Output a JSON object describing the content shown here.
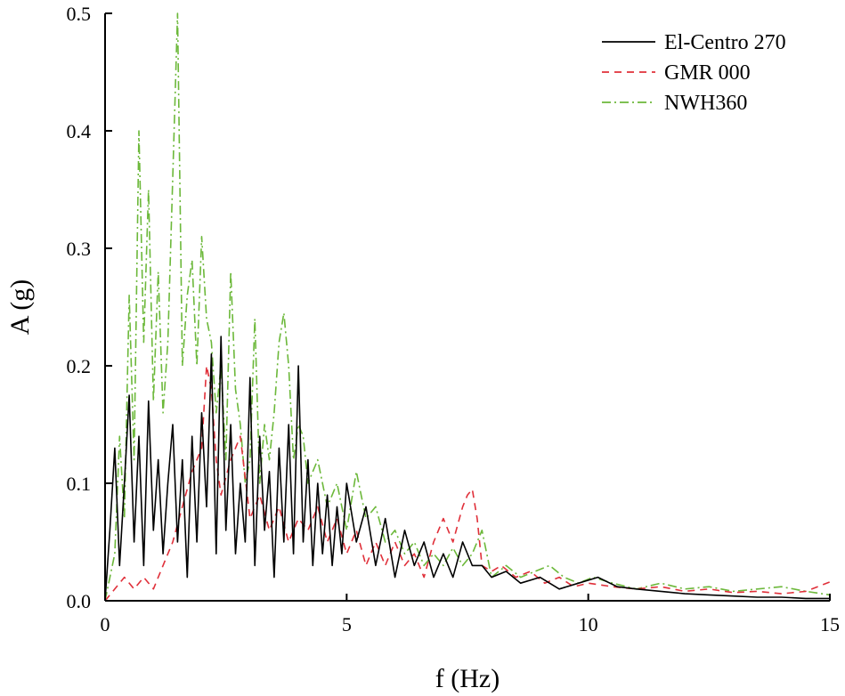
{
  "chart_data": {
    "type": "line",
    "title": "",
    "xlabel": "f (Hz)",
    "ylabel": "A (g)",
    "xlim": [
      0,
      15
    ],
    "ylim": [
      0,
      0.5
    ],
    "xticks": [
      0,
      5,
      10,
      15
    ],
    "xtick_labels": [
      "0",
      "5",
      "10",
      "15"
    ],
    "yticks": [
      0,
      0.1,
      0.2,
      0.3,
      0.4,
      0.5
    ],
    "ytick_labels": [
      "0.0",
      "0.1",
      "0.2",
      "0.3",
      "0.4",
      "0.5"
    ],
    "grid": false,
    "legend_position": "top-right",
    "series": [
      {
        "name": "El-Centro 270",
        "color": "#000000",
        "dash": "solid",
        "x": [
          0,
          0.1,
          0.2,
          0.3,
          0.4,
          0.5,
          0.6,
          0.7,
          0.8,
          0.9,
          1.0,
          1.1,
          1.2,
          1.3,
          1.4,
          1.5,
          1.6,
          1.7,
          1.8,
          1.9,
          2.0,
          2.1,
          2.2,
          2.3,
          2.4,
          2.5,
          2.6,
          2.7,
          2.8,
          2.9,
          3.0,
          3.1,
          3.2,
          3.3,
          3.4,
          3.5,
          3.6,
          3.7,
          3.8,
          3.9,
          4.0,
          4.1,
          4.2,
          4.3,
          4.4,
          4.5,
          4.6,
          4.7,
          4.8,
          4.9,
          5.0,
          5.2,
          5.4,
          5.6,
          5.8,
          6.0,
          6.2,
          6.4,
          6.6,
          6.8,
          7.0,
          7.2,
          7.4,
          7.6,
          7.8,
          8.0,
          8.3,
          8.6,
          9.0,
          9.4,
          9.8,
          10.2,
          10.6,
          11.0,
          11.5,
          12.0,
          12.5,
          13.0,
          13.5,
          14.0,
          14.5,
          15.0
        ],
        "y": [
          0.0,
          0.06,
          0.13,
          0.03,
          0.1,
          0.175,
          0.05,
          0.14,
          0.03,
          0.17,
          0.06,
          0.12,
          0.04,
          0.1,
          0.15,
          0.05,
          0.12,
          0.02,
          0.14,
          0.05,
          0.16,
          0.08,
          0.21,
          0.04,
          0.225,
          0.06,
          0.15,
          0.04,
          0.1,
          0.05,
          0.19,
          0.03,
          0.14,
          0.06,
          0.11,
          0.02,
          0.13,
          0.05,
          0.15,
          0.04,
          0.2,
          0.05,
          0.12,
          0.03,
          0.1,
          0.04,
          0.09,
          0.03,
          0.08,
          0.04,
          0.1,
          0.05,
          0.08,
          0.03,
          0.07,
          0.02,
          0.06,
          0.03,
          0.05,
          0.02,
          0.04,
          0.02,
          0.05,
          0.03,
          0.03,
          0.02,
          0.025,
          0.015,
          0.02,
          0.01,
          0.015,
          0.02,
          0.012,
          0.01,
          0.008,
          0.006,
          0.005,
          0.004,
          0.003,
          0.003,
          0.002,
          0.002
        ]
      },
      {
        "name": "GMR 000",
        "color": "#e0303a",
        "dash": "dashed",
        "x": [
          0,
          0.2,
          0.4,
          0.6,
          0.8,
          1.0,
          1.2,
          1.4,
          1.6,
          1.8,
          2.0,
          2.1,
          2.2,
          2.3,
          2.4,
          2.6,
          2.8,
          3.0,
          3.2,
          3.4,
          3.6,
          3.8,
          4.0,
          4.2,
          4.4,
          4.6,
          4.8,
          5.0,
          5.2,
          5.4,
          5.6,
          5.8,
          6.0,
          6.2,
          6.4,
          6.6,
          6.8,
          7.0,
          7.2,
          7.4,
          7.5,
          7.6,
          7.7,
          7.8,
          8.0,
          8.2,
          8.5,
          8.8,
          9.1,
          9.4,
          9.7,
          10.0,
          10.5,
          11.0,
          11.5,
          12.0,
          12.5,
          13.0,
          13.5,
          14.0,
          14.5,
          15.0
        ],
        "y": [
          0.0,
          0.01,
          0.02,
          0.01,
          0.02,
          0.01,
          0.03,
          0.05,
          0.08,
          0.11,
          0.13,
          0.2,
          0.18,
          0.12,
          0.09,
          0.12,
          0.14,
          0.07,
          0.09,
          0.06,
          0.08,
          0.05,
          0.07,
          0.06,
          0.08,
          0.05,
          0.07,
          0.04,
          0.06,
          0.03,
          0.05,
          0.03,
          0.05,
          0.03,
          0.04,
          0.02,
          0.05,
          0.07,
          0.05,
          0.08,
          0.09,
          0.095,
          0.07,
          0.03,
          0.025,
          0.03,
          0.02,
          0.025,
          0.015,
          0.02,
          0.012,
          0.015,
          0.012,
          0.01,
          0.012,
          0.008,
          0.01,
          0.007,
          0.008,
          0.006,
          0.008,
          0.016
        ]
      },
      {
        "name": "NWH360",
        "color": "#6cb83a",
        "dash": "dashdot",
        "x": [
          0,
          0.2,
          0.3,
          0.4,
          0.5,
          0.6,
          0.7,
          0.8,
          0.9,
          1.0,
          1.1,
          1.2,
          1.3,
          1.4,
          1.5,
          1.6,
          1.7,
          1.8,
          1.9,
          2.0,
          2.1,
          2.2,
          2.3,
          2.4,
          2.5,
          2.6,
          2.7,
          2.8,
          2.9,
          3.0,
          3.1,
          3.2,
          3.3,
          3.4,
          3.5,
          3.6,
          3.7,
          3.8,
          3.9,
          4.0,
          4.1,
          4.2,
          4.4,
          4.6,
          4.8,
          5.0,
          5.2,
          5.4,
          5.6,
          5.8,
          6.0,
          6.2,
          6.4,
          6.6,
          6.8,
          7.0,
          7.2,
          7.4,
          7.6,
          7.8,
          8.0,
          8.3,
          8.6,
          8.9,
          9.2,
          9.5,
          9.8,
          10.1,
          10.5,
          11.0,
          11.5,
          12.0,
          12.5,
          13.0,
          13.5,
          14.0,
          14.5,
          15.0
        ],
        "y": [
          0.0,
          0.04,
          0.14,
          0.07,
          0.26,
          0.12,
          0.4,
          0.22,
          0.35,
          0.17,
          0.28,
          0.16,
          0.22,
          0.36,
          0.5,
          0.2,
          0.26,
          0.29,
          0.2,
          0.31,
          0.24,
          0.22,
          0.16,
          0.2,
          0.12,
          0.28,
          0.18,
          0.15,
          0.1,
          0.12,
          0.24,
          0.1,
          0.15,
          0.12,
          0.16,
          0.22,
          0.245,
          0.2,
          0.12,
          0.15,
          0.14,
          0.1,
          0.12,
          0.08,
          0.1,
          0.06,
          0.11,
          0.07,
          0.08,
          0.05,
          0.06,
          0.04,
          0.05,
          0.03,
          0.04,
          0.03,
          0.045,
          0.03,
          0.04,
          0.06,
          0.02,
          0.03,
          0.02,
          0.025,
          0.03,
          0.02,
          0.015,
          0.02,
          0.015,
          0.01,
          0.015,
          0.01,
          0.012,
          0.008,
          0.01,
          0.012,
          0.008,
          0.005
        ]
      }
    ]
  }
}
